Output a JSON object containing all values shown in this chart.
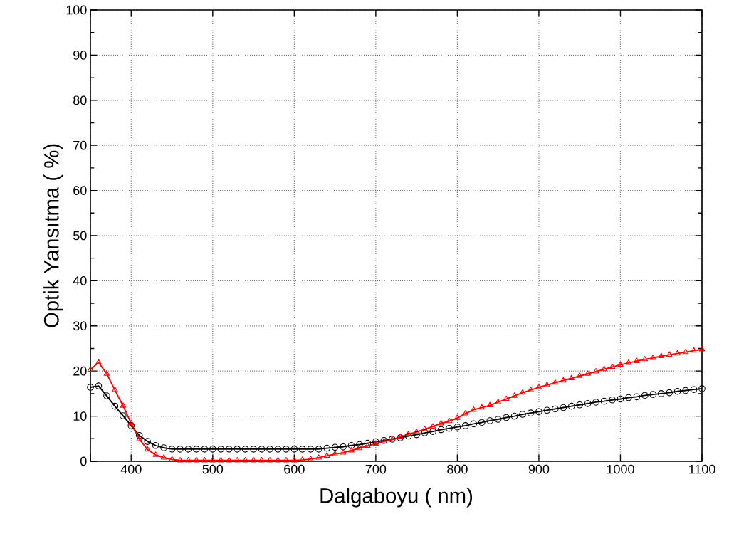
{
  "chart_data": {
    "type": "line",
    "xlabel": "Dalgaboyu ( nm)",
    "ylabel": "Optik Yansıtma ( %)",
    "x": [
      350,
      360,
      370,
      380,
      390,
      400,
      410,
      420,
      430,
      440,
      450,
      460,
      470,
      480,
      490,
      500,
      510,
      520,
      530,
      540,
      550,
      560,
      570,
      580,
      590,
      600,
      610,
      620,
      630,
      640,
      650,
      660,
      670,
      680,
      690,
      700,
      710,
      720,
      730,
      740,
      750,
      760,
      770,
      780,
      790,
      800,
      810,
      820,
      830,
      840,
      850,
      860,
      870,
      880,
      890,
      900,
      910,
      920,
      930,
      940,
      950,
      960,
      970,
      980,
      990,
      1000,
      1010,
      1020,
      1030,
      1040,
      1050,
      1060,
      1070,
      1080,
      1090,
      1100
    ],
    "series": [
      {
        "color": "#000000",
        "marker": "circle",
        "values": [
          16.4,
          16.7,
          14.5,
          12.2,
          10.1,
          7.9,
          5.7,
          4.4,
          3.5,
          3.0,
          2.7,
          2.7,
          2.7,
          2.7,
          2.7,
          2.7,
          2.7,
          2.7,
          2.7,
          2.7,
          2.7,
          2.7,
          2.7,
          2.7,
          2.7,
          2.7,
          2.7,
          2.7,
          2.7,
          2.9,
          3.1,
          3.2,
          3.5,
          3.7,
          4.0,
          4.3,
          4.6,
          4.9,
          5.2,
          5.6,
          5.9,
          6.3,
          6.6,
          7.0,
          7.3,
          7.6,
          7.9,
          8.3,
          8.6,
          9.0,
          9.3,
          9.7,
          10.0,
          10.4,
          10.7,
          11.0,
          11.3,
          11.6,
          11.9,
          12.2,
          12.5,
          12.8,
          13.1,
          13.3,
          13.6,
          13.8,
          14.1,
          14.3,
          14.6,
          14.8,
          15.0,
          15.2,
          15.5,
          15.7,
          15.9,
          16.1
        ]
      },
      {
        "color": "#ff0000",
        "marker": "triangle",
        "values": [
          20.3,
          21.9,
          19.4,
          15.8,
          12.3,
          8.4,
          4.9,
          2.6,
          1.4,
          0.8,
          0.4,
          0.2,
          0.2,
          0.2,
          0.2,
          0.2,
          0.2,
          0.2,
          0.2,
          0.2,
          0.2,
          0.2,
          0.2,
          0.2,
          0.2,
          0.2,
          0.3,
          0.5,
          0.8,
          1.2,
          1.6,
          1.9,
          2.4,
          2.9,
          3.4,
          3.9,
          4.4,
          4.8,
          5.4,
          6.0,
          6.5,
          7.1,
          7.7,
          8.4,
          8.9,
          9.6,
          10.6,
          11.4,
          11.9,
          12.4,
          13.1,
          13.8,
          14.5,
          15.2,
          15.8,
          16.4,
          16.9,
          17.4,
          17.9,
          18.4,
          18.9,
          19.4,
          19.9,
          20.4,
          20.9,
          21.4,
          21.8,
          22.2,
          22.6,
          22.9,
          23.3,
          23.6,
          23.9,
          24.2,
          24.5,
          24.8
        ]
      }
    ],
    "xlim": [
      350,
      1100
    ],
    "ylim": [
      0,
      100
    ],
    "xticks": [
      {
        "value": 350,
        "label": null
      },
      400,
      500,
      600,
      700,
      800,
      900,
      1000,
      1100
    ],
    "yticks": [
      0,
      10,
      20,
      30,
      40,
      50,
      60,
      70,
      80,
      90,
      100
    ],
    "grid": true,
    "line_style": "solid"
  }
}
